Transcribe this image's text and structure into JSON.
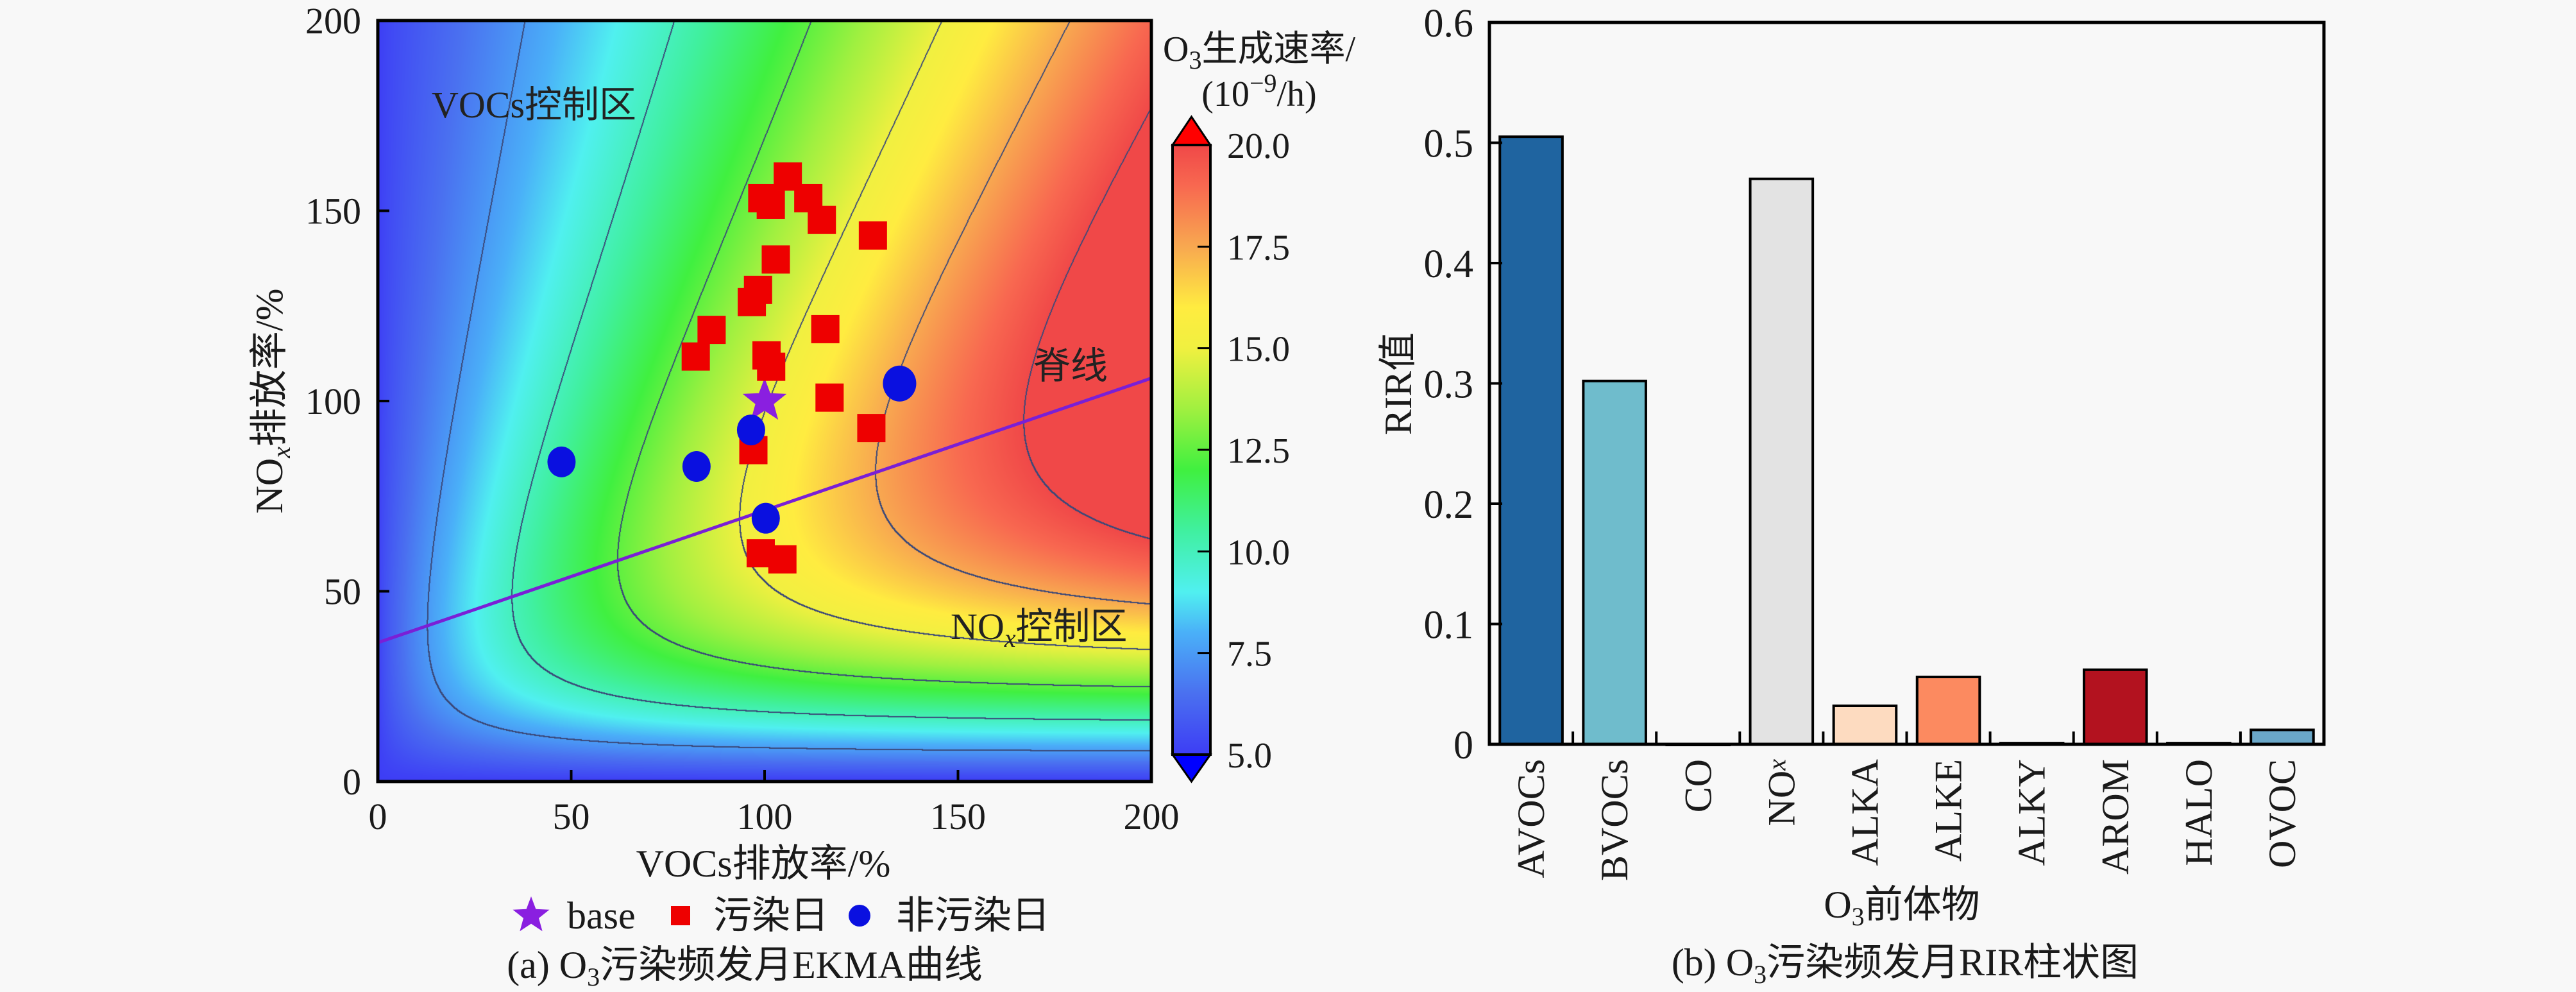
{
  "chart_data": [
    {
      "type": "heatmap",
      "caption": {
        "prefix": "(a) O",
        "sub": "3",
        "suffix": "污染频发月EKMA曲线"
      },
      "xlabel": "VOCs排放率/%",
      "ylabel": {
        "main": "NO",
        "sub": "x",
        "rest": "排放率/%"
      },
      "xlim": [
        0,
        200
      ],
      "ylim": [
        0,
        200
      ],
      "xticks": [
        "0",
        "50",
        "100",
        "150",
        "200"
      ],
      "yticks": [
        "0",
        "50",
        "100",
        "150",
        "200"
      ],
      "colorbar": {
        "title_line1": {
          "main": "O",
          "sub": "3",
          "rest": "生成速率/"
        },
        "title_line2": {
          "open": "(10",
          "sup": "−9",
          "close": "/h)"
        },
        "range": [
          5,
          20
        ],
        "extend": "both",
        "ticks": [
          "5.0",
          "7.5",
          "10.0",
          "12.5",
          "15.0",
          "17.5",
          "20.0"
        ],
        "colormap": "jet"
      },
      "contour_levels": [
        7.5,
        10,
        12.5,
        15,
        17.5,
        20
      ],
      "annotations": {
        "voc_zone": "VOCs控制区",
        "ridge": "脊线",
        "nox_zone": {
          "main": "NO",
          "sub": "x",
          "rest": "控制区"
        }
      },
      "ridge_line": {
        "x": [
          0,
          200
        ],
        "y": [
          36.5,
          106
        ],
        "color": "#7a1fd6"
      },
      "legend": [
        {
          "label": "base",
          "marker": "star",
          "color": "#8a1fe0"
        },
        {
          "label": "污染日",
          "marker": "square",
          "color": "#ee0000"
        },
        {
          "label": "非污染日",
          "marker": "circle",
          "color": "#0a10e0"
        }
      ],
      "series": [
        {
          "name": "base",
          "marker": "star",
          "color": "#8a1fe0",
          "points": [
            [
              100,
              100
            ]
          ]
        },
        {
          "name": "污染日",
          "marker": "square",
          "color": "#ee0000",
          "points": [
            [
              106,
              159
            ],
            [
              99.4,
              153.3
            ],
            [
              101.6,
              151.6
            ],
            [
              111.3,
              153.3
            ],
            [
              114.8,
              147.6
            ],
            [
              128,
              143.5
            ],
            [
              102.9,
              137.2
            ],
            [
              98.3,
              129.2
            ],
            [
              96.7,
              126
            ],
            [
              86.3,
              118.7
            ],
            [
              115.7,
              118.9
            ],
            [
              82.2,
              111.7
            ],
            [
              100.5,
              112
            ],
            [
              101.7,
              109
            ],
            [
              116.8,
              100.9
            ],
            [
              127.6,
              92.9
            ],
            [
              97.1,
              87.1
            ],
            [
              99,
              60
            ],
            [
              104.6,
              58.4
            ]
          ]
        },
        {
          "name": "非污染日",
          "marker": "circle",
          "color": "#0a10e0",
          "points": [
            [
              47.5,
              84
            ],
            [
              82.4,
              82.8
            ],
            [
              96.5,
              92.4
            ],
            [
              134.9,
              104.6
            ],
            [
              100.3,
              69.2
            ]
          ]
        }
      ]
    },
    {
      "type": "bar",
      "caption": {
        "prefix": "(b) O",
        "sub": "3",
        "suffix": "污染频发月RIR柱状图"
      },
      "xlabel": {
        "main": "O",
        "sub": "3",
        "rest": "前体物"
      },
      "ylabel": "RIR值",
      "ylim": [
        0,
        0.6
      ],
      "yticks": [
        "0",
        "0.1",
        "0.2",
        "0.3",
        "0.4",
        "0.5",
        "0.6"
      ],
      "categories": [
        "AVOCs",
        "BVOCs",
        "CO",
        "NOx",
        "ALKA",
        "ALKE",
        "ALKY",
        "AROM",
        "HALO",
        "OVOC"
      ],
      "values": [
        0.505,
        0.302,
        0,
        0.47,
        0.032,
        0.056,
        0.001,
        0.062,
        0.001,
        0.012
      ],
      "colors": [
        "#1f64a0",
        "#6fbccc",
        "#ffffff",
        "#e3e3e3",
        "#fddbc0",
        "#fc8a60",
        "#ffffff",
        "#b3121f",
        "#ffffff",
        "#6aa7c8"
      ]
    }
  ]
}
